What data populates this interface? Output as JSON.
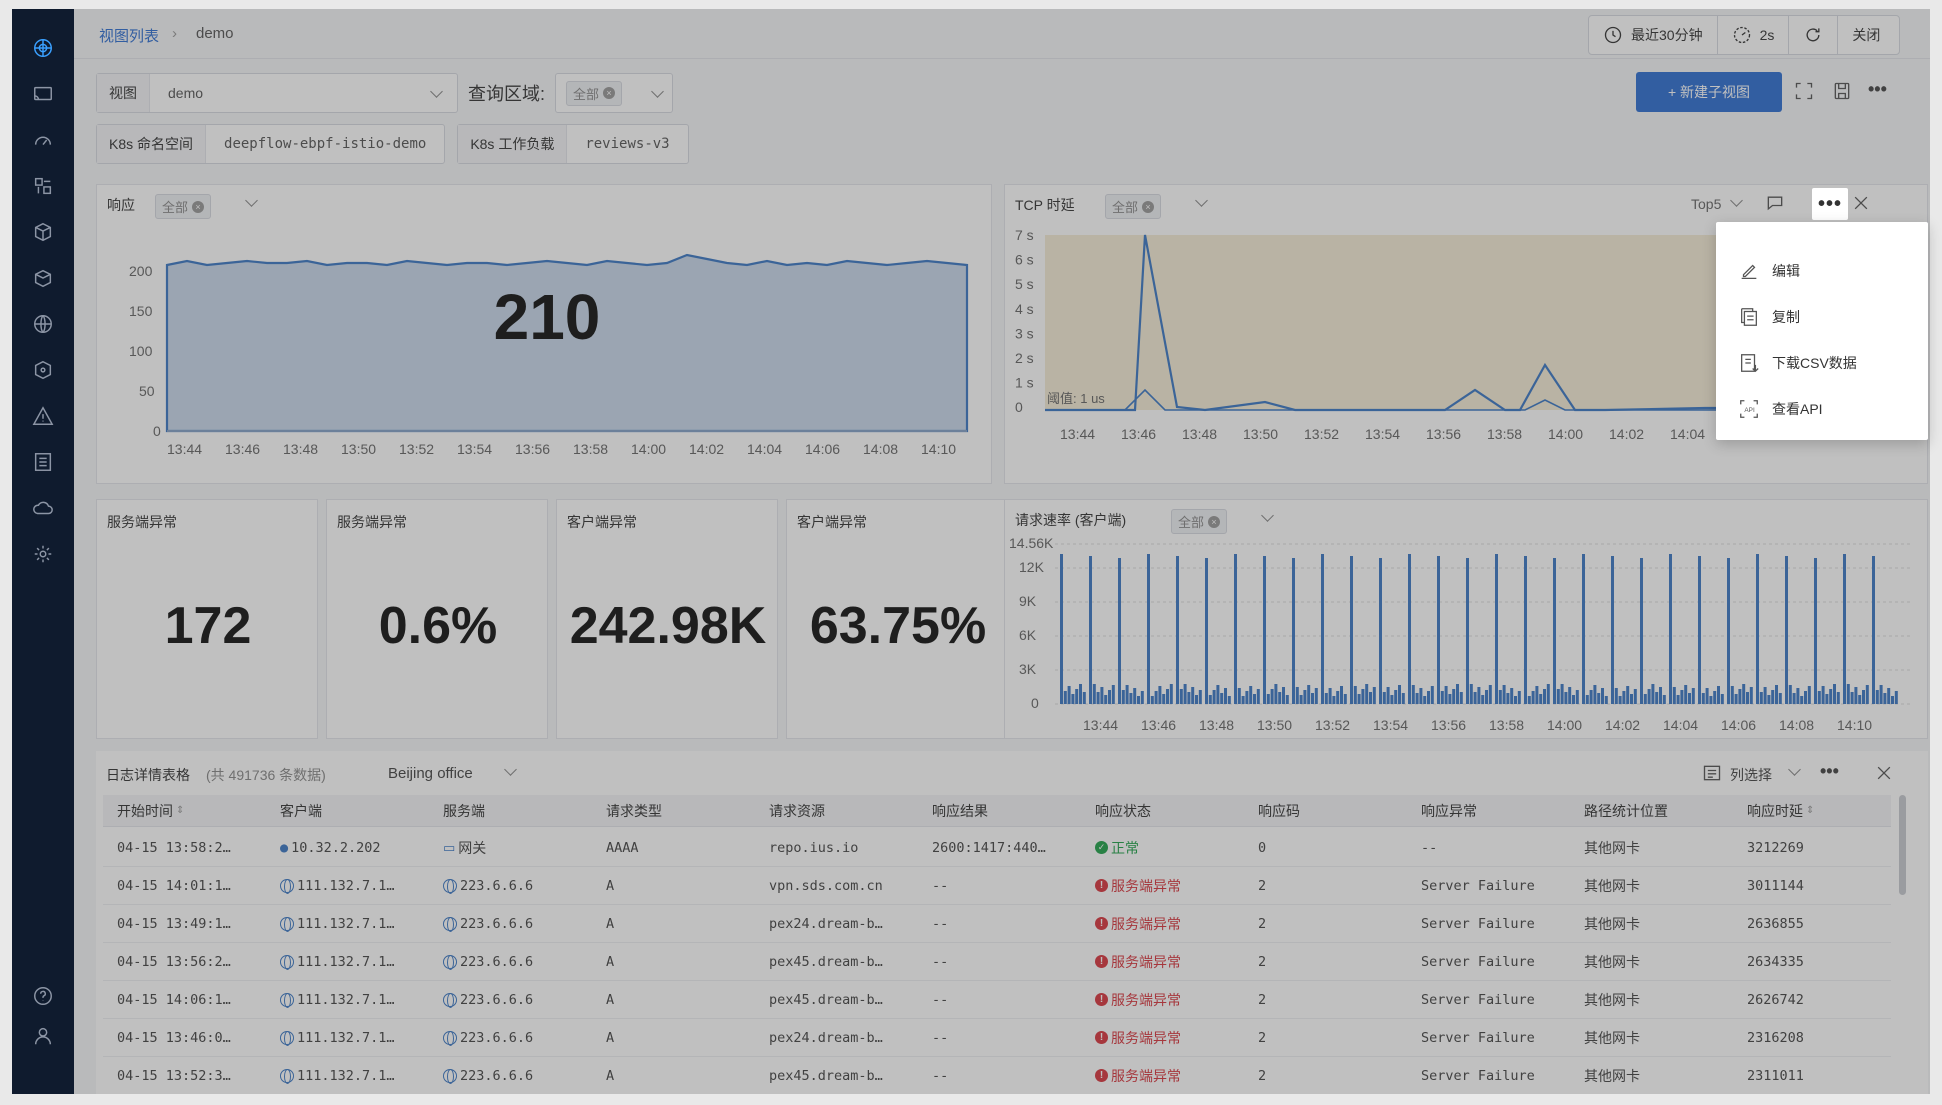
{
  "sidebar": {
    "icons": [
      "logo-icon",
      "screen-icon",
      "dashboard-icon",
      "app-icon",
      "cube-icon",
      "box-icon",
      "network-icon",
      "resource-icon",
      "alert-icon",
      "list-icon",
      "cloud-icon",
      "settings-icon",
      "help-icon",
      "user-icon"
    ]
  },
  "breadcrumb": {
    "parent": "视图列表",
    "current": "demo"
  },
  "topbar": {
    "time_range": "最近30分钟",
    "refresh": "2s",
    "close": "关闭"
  },
  "filters": {
    "view_label": "视图",
    "view_value": "demo",
    "query_region_label": "查询区域:",
    "query_region_value": "全部",
    "new_subview": "+ 新建子视图",
    "ns_label": "K8s 命名空间",
    "ns_value": "deepflow-ebpf-istio-demo",
    "workload_label": "K8s 工作负载",
    "workload_value": "reviews-v3"
  },
  "response_panel": {
    "title": "响应",
    "filter": "全部",
    "big_value": "210",
    "yticks": [
      "200",
      "150",
      "100",
      "50",
      "0"
    ]
  },
  "tcp_panel": {
    "title": "TCP 时延",
    "filter": "全部",
    "top": "Top5",
    "threshold": "阈值: 1 us",
    "yticks": [
      "7 s",
      "6 s",
      "5 s",
      "4 s",
      "3 s",
      "2 s",
      "1 s",
      "0"
    ]
  },
  "rate_panel": {
    "title": "请求速率 (客户端)",
    "filter": "全部",
    "yticks": [
      "14.56K",
      "12K",
      "9K",
      "6K",
      "3K",
      "0"
    ]
  },
  "time_ticks": [
    "13:44",
    "13:46",
    "13:48",
    "13:50",
    "13:52",
    "13:54",
    "13:56",
    "13:58",
    "14:00",
    "14:02",
    "14:04",
    "14:06",
    "14:08",
    "14:10"
  ],
  "stats": [
    {
      "title": "服务端异常",
      "value": "172"
    },
    {
      "title": "服务端异常",
      "value": "0.6%"
    },
    {
      "title": "客户端异常",
      "value": "242.98K"
    },
    {
      "title": "客户端异常",
      "value": "63.75%"
    }
  ],
  "menu": {
    "edit": "编辑",
    "copy": "复制",
    "download": "下载CSV数据",
    "api": "查看API"
  },
  "log_table": {
    "title": "日志详情表格",
    "count": "(共 491736 条数据)",
    "region": "Beijing office",
    "column_select": "列选择",
    "columns": [
      "开始时间",
      "客户端",
      "服务端",
      "请求类型",
      "请求资源",
      "响应结果",
      "响应状态",
      "响应码",
      "响应异常",
      "路径统计位置",
      "响应时延"
    ],
    "rows": [
      {
        "time": "04-15 13:58:2…",
        "client": "10.32.2.202",
        "server": "网关",
        "type": "AAAA",
        "resource": "repo.ius.io",
        "result": "2600:1417:440…",
        "status": "正常",
        "code": "0",
        "exception": "--",
        "position": "其他网卡",
        "latency": "3212269"
      },
      {
        "time": "04-15 14:01:1…",
        "client": "111.132.7.1…",
        "server": "223.6.6.6",
        "type": "A",
        "resource": "vpn.sds.com.cn",
        "result": "--",
        "status": "服务端异常",
        "code": "2",
        "exception": "Server Failure",
        "position": "其他网卡",
        "latency": "3011144"
      },
      {
        "time": "04-15 13:49:1…",
        "client": "111.132.7.1…",
        "server": "223.6.6.6",
        "type": "A",
        "resource": "pex24.dream-b…",
        "result": "--",
        "status": "服务端异常",
        "code": "2",
        "exception": "Server Failure",
        "position": "其他网卡",
        "latency": "2636855"
      },
      {
        "time": "04-15 13:56:2…",
        "client": "111.132.7.1…",
        "server": "223.6.6.6",
        "type": "A",
        "resource": "pex45.dream-b…",
        "result": "--",
        "status": "服务端异常",
        "code": "2",
        "exception": "Server Failure",
        "position": "其他网卡",
        "latency": "2634335"
      },
      {
        "time": "04-15 14:06:1…",
        "client": "111.132.7.1…",
        "server": "223.6.6.6",
        "type": "A",
        "resource": "pex45.dream-b…",
        "result": "--",
        "status": "服务端异常",
        "code": "2",
        "exception": "Server Failure",
        "position": "其他网卡",
        "latency": "2626742"
      },
      {
        "time": "04-15 13:46:0…",
        "client": "111.132.7.1…",
        "server": "223.6.6.6",
        "type": "A",
        "resource": "pex24.dream-b…",
        "result": "--",
        "status": "服务端异常",
        "code": "2",
        "exception": "Server Failure",
        "position": "其他网卡",
        "latency": "2316208"
      },
      {
        "time": "04-15 13:52:3…",
        "client": "111.132.7.1…",
        "server": "223.6.6.6",
        "type": "A",
        "resource": "pex45.dream-b…",
        "result": "--",
        "status": "服务端异常",
        "code": "2",
        "exception": "Server Failure",
        "position": "其他网卡",
        "latency": "2311011"
      }
    ]
  },
  "colors": {
    "accent": "#2f6fd1",
    "error": "#d9363e",
    "ok": "#21a34a",
    "sidebar": "#0f1b2e"
  }
}
